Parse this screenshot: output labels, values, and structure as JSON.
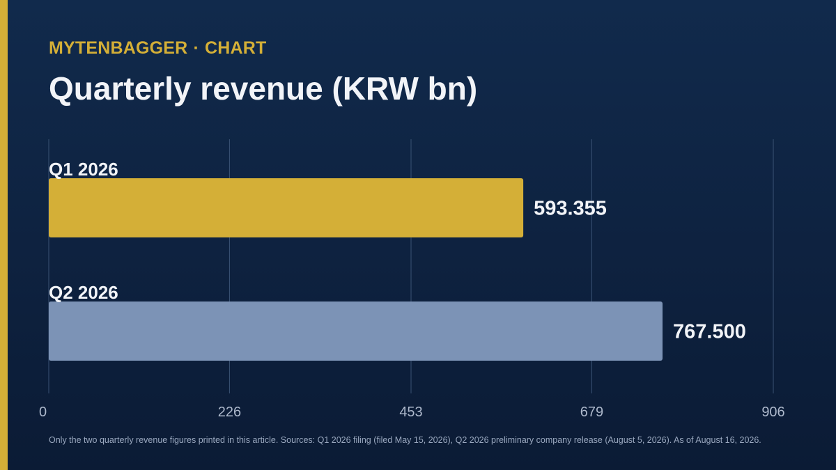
{
  "brand": {
    "name": "MYTENBAGGER",
    "separator": "·",
    "section": "CHART"
  },
  "colors": {
    "accent": "#d4af37",
    "background_top": "#112a4c",
    "background_bottom": "#0b1b35",
    "bar_q1": "#d4af37",
    "bar_q2": "#7c93b6",
    "gridline": "#3a5274"
  },
  "chart_data": {
    "type": "bar",
    "orientation": "horizontal",
    "title": "Quarterly revenue (KRW bn)",
    "categories": [
      "Q1 2026",
      "Q2 2026"
    ],
    "values": [
      593.355,
      767.5
    ],
    "value_labels": [
      "593.355",
      "767.500"
    ],
    "bar_colors": [
      "#d4af37",
      "#7c93b6"
    ],
    "xlim": [
      0,
      906
    ],
    "x_ticks": [
      "0",
      "226",
      "453",
      "679",
      "906"
    ],
    "grid": true,
    "legend": "none"
  },
  "footnote": "Only the two quarterly revenue figures printed in this article. Sources: Q1 2026 filing (filed May 15, 2026), Q2 2026 preliminary company release (August 5, 2026). As of August 16, 2026."
}
